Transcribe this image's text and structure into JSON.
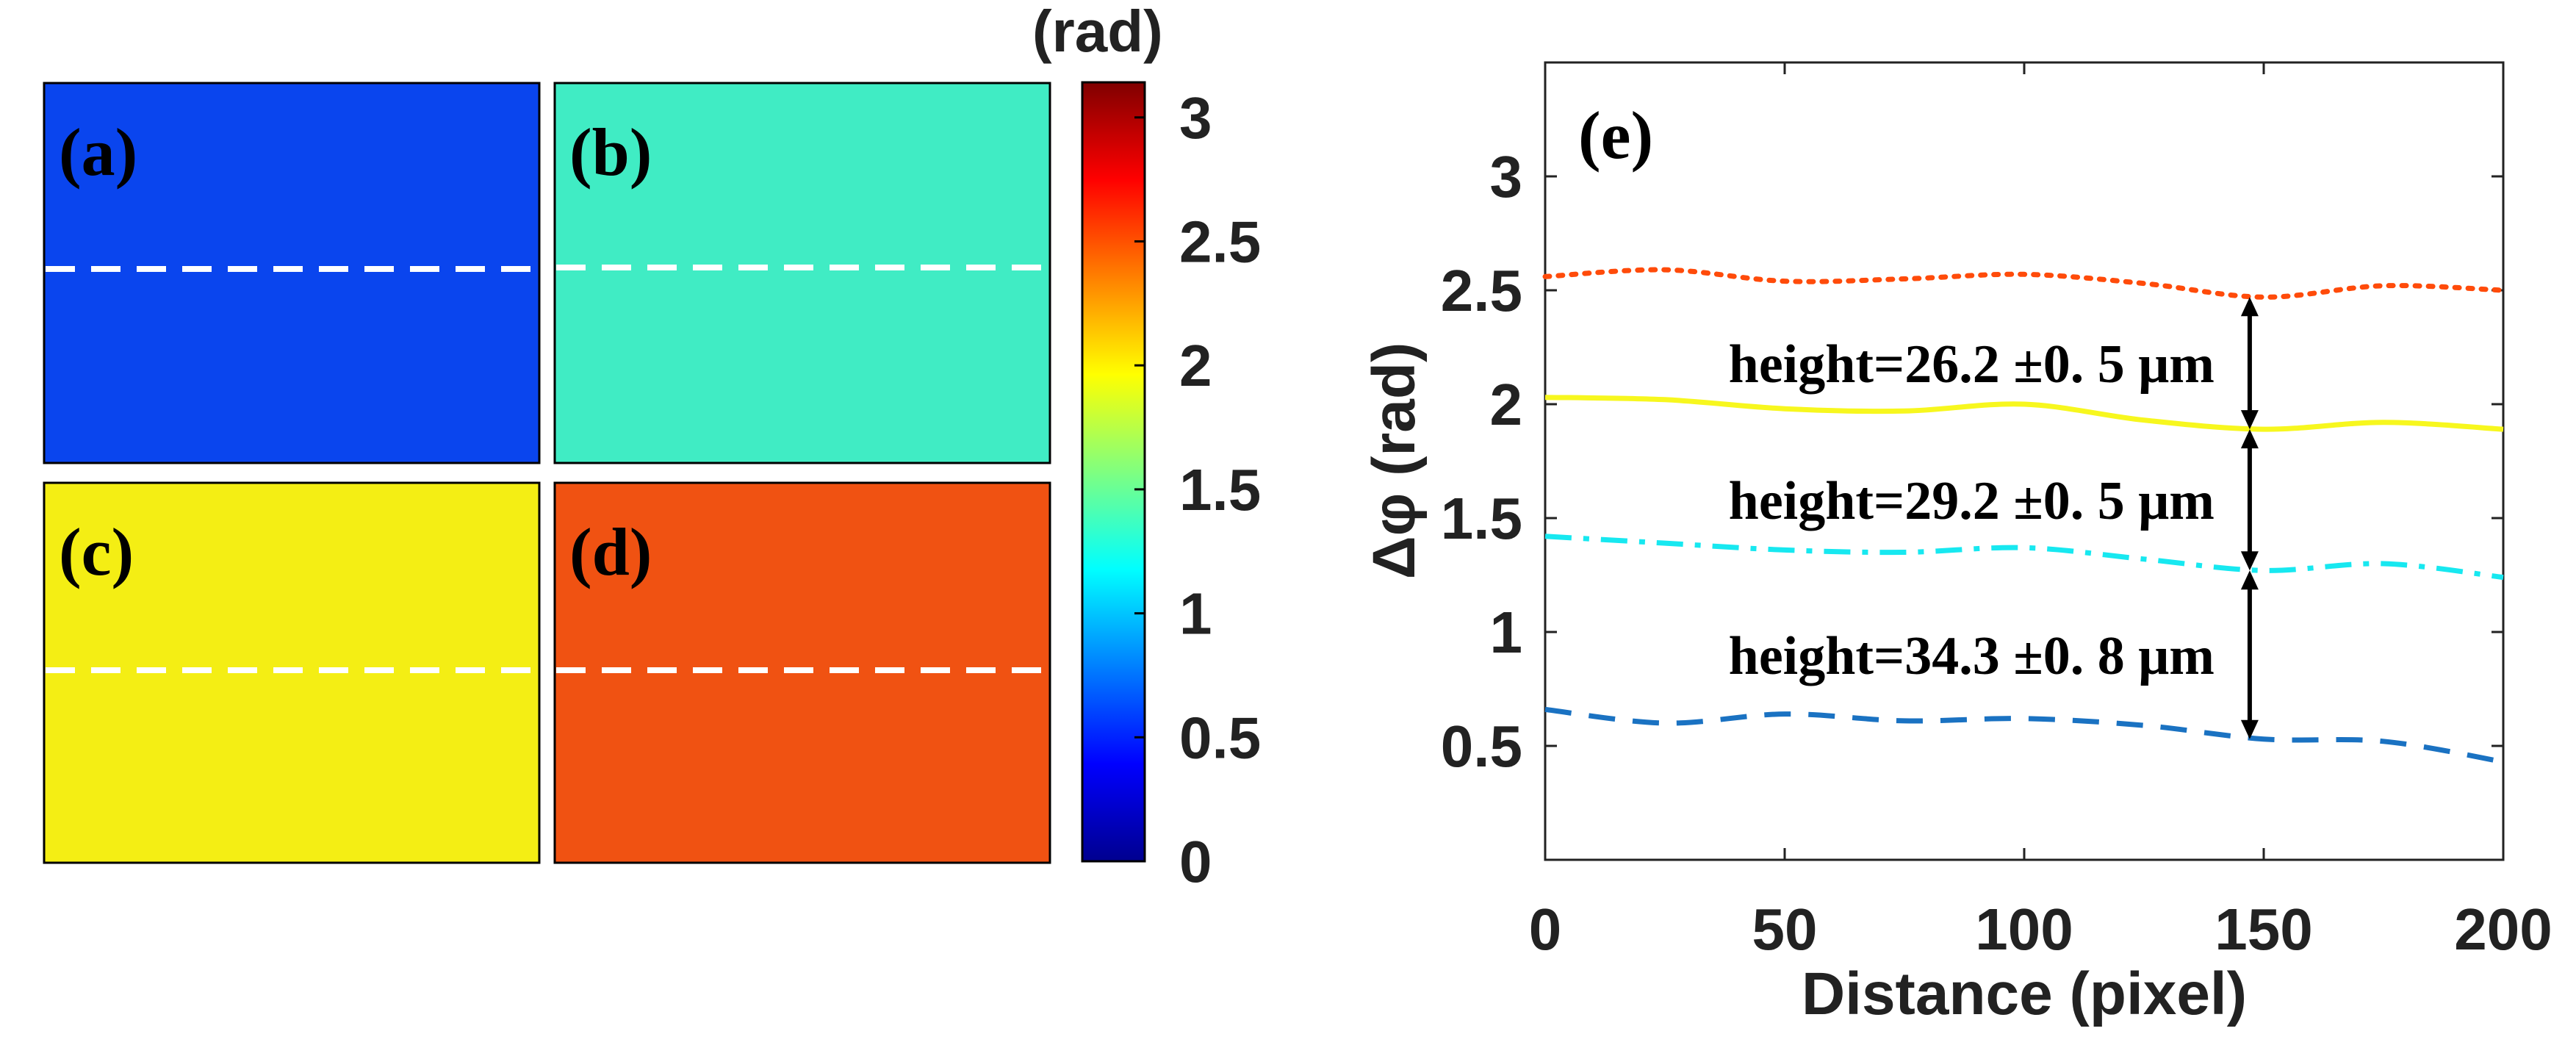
{
  "panels": [
    {
      "label": "(a)",
      "fill": "#0a45ee"
    },
    {
      "label": "(b)",
      "fill": "#40ecc4"
    },
    {
      "label": "(c)",
      "fill": "#f4ee14"
    },
    {
      "label": "(d)",
      "fill": "#f05212"
    }
  ],
  "colorbar": {
    "unit_label": "(rad)",
    "ticks": [
      "0",
      "0.5",
      "1",
      "1.5",
      "2",
      "2.5",
      "3"
    ],
    "range": [
      0,
      3.1416
    ],
    "colormap": "jet"
  },
  "chart_data": {
    "type": "line",
    "panel_label": "(e)",
    "xlabel": "Distance (pixel)",
    "ylabel": "Δφ (rad)",
    "xlim": [
      0,
      200
    ],
    "ylim": [
      0,
      3.5
    ],
    "xticks": [
      "0",
      "50",
      "100",
      "150",
      "200"
    ],
    "yticks": [
      "0.5",
      "1",
      "1.5",
      "2",
      "2.5",
      "3"
    ],
    "grid": false,
    "x": [
      0,
      25,
      50,
      75,
      100,
      125,
      150,
      175,
      200
    ],
    "series": [
      {
        "color": "#ff4b0a",
        "style": "dotted",
        "values": [
          2.56,
          2.59,
          2.54,
          2.55,
          2.57,
          2.53,
          2.47,
          2.52,
          2.5
        ]
      },
      {
        "color": "#f7f71e",
        "style": "solid",
        "values": [
          2.03,
          2.02,
          1.98,
          1.97,
          2.0,
          1.93,
          1.89,
          1.92,
          1.89
        ]
      },
      {
        "color": "#17e8f0",
        "style": "dashdot",
        "values": [
          1.42,
          1.39,
          1.36,
          1.35,
          1.37,
          1.32,
          1.27,
          1.3,
          1.24
        ]
      },
      {
        "color": "#1a72c2",
        "style": "dashed",
        "values": [
          0.66,
          0.6,
          0.64,
          0.61,
          0.62,
          0.59,
          0.53,
          0.52,
          0.43
        ]
      }
    ],
    "annotations": [
      {
        "text": "height=26.2 ±0. 5 μm",
        "x": 146,
        "from": 2.47,
        "to": 1.89
      },
      {
        "text": "height=29.2 ±0. 5 μm",
        "x": 146,
        "from": 1.89,
        "to": 1.27
      },
      {
        "text": "height=34.3 ±0. 8 μm",
        "x": 146,
        "from": 1.27,
        "to": 0.53
      }
    ]
  }
}
